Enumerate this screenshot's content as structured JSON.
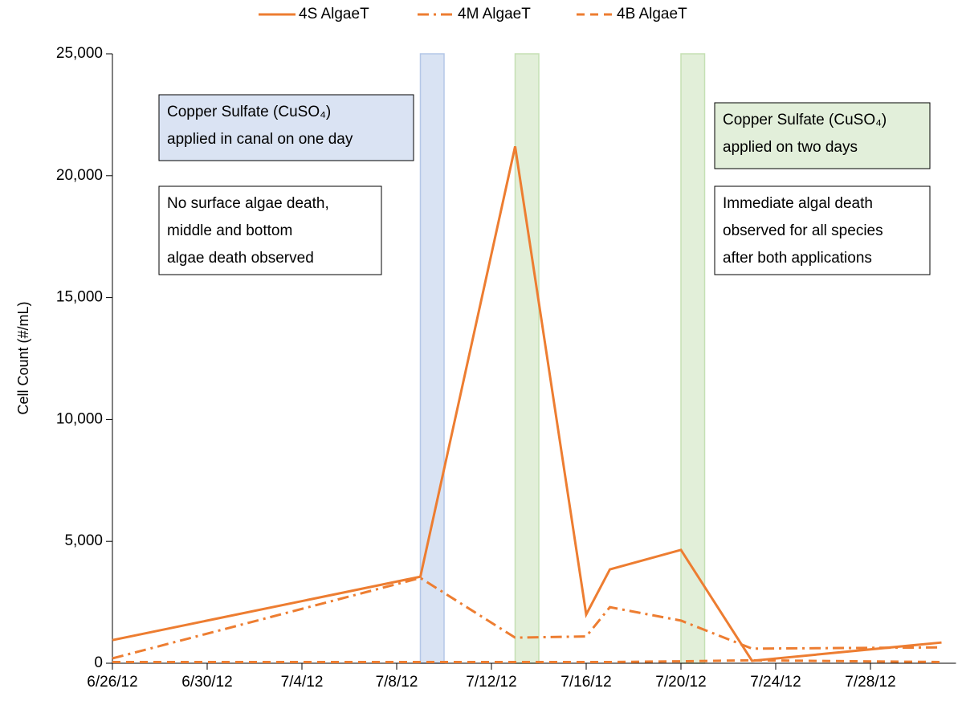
{
  "chart_data": {
    "type": "line",
    "y_label": "Cell Count (#/mL)",
    "xlim": [
      "6/26/12",
      "7/31/12"
    ],
    "xticks": [
      "6/26/12",
      "6/30/12",
      "7/4/12",
      "7/8/12",
      "7/12/12",
      "7/16/12",
      "7/20/12",
      "7/24/12",
      "7/28/12"
    ],
    "ylim": [
      0,
      25000
    ],
    "yticks": [
      0,
      {
        "value": 5000,
        "label": "5,000"
      },
      {
        "value": 10000,
        "label": "10,000"
      },
      {
        "value": 15000,
        "label": "15,000"
      },
      {
        "value": 20000,
        "label": "20,000"
      },
      {
        "value": 25000,
        "label": "25,000"
      }
    ],
    "x": [
      "6/26/12",
      "7/9/12",
      "7/13/12",
      "7/16/12",
      "7/17/12",
      "7/20/12",
      "7/23/12",
      "7/31/12"
    ],
    "series": [
      {
        "name": "4S AlgaeT",
        "color": "#ed7d31",
        "dash": "solid",
        "values": [
          950,
          3550,
          21200,
          2000,
          3850,
          4650,
          100,
          850
        ]
      },
      {
        "name": "4M AlgaeT",
        "color": "#ed7d31",
        "dash": "dashdot",
        "values": [
          200,
          3500,
          1050,
          1100,
          2300,
          1750,
          600,
          650
        ]
      },
      {
        "name": "4B AlgaeT",
        "color": "#ed7d31",
        "dash": "dash",
        "values": [
          50,
          50,
          50,
          50,
          50,
          80,
          120,
          50
        ]
      }
    ],
    "bands": [
      {
        "start": "7/9/12",
        "end": "7/10/12",
        "color": "#b4c7e7"
      },
      {
        "start": "7/13/12",
        "end": "7/14/12",
        "color": "#c5e0b4"
      },
      {
        "start": "7/20/12",
        "end": "7/21/12",
        "color": "#c5e0b4"
      }
    ],
    "annotations": [
      {
        "lines": [
          "Copper Sulfate (CuSO₄)",
          "applied in canal on one day"
        ],
        "fill": "#dae3f3"
      },
      {
        "lines": [
          "No surface algae death,",
          "middle and bottom",
          "algae death observed"
        ],
        "fill": "#ffffff"
      },
      {
        "lines": [
          "Copper Sulfate (CuSO₄)",
          "applied on two days"
        ],
        "fill": "#e2efda"
      },
      {
        "lines": [
          "Immediate algal death",
          "observed for all species",
          "after both applications"
        ],
        "fill": "#ffffff"
      }
    ],
    "legend": "top"
  }
}
